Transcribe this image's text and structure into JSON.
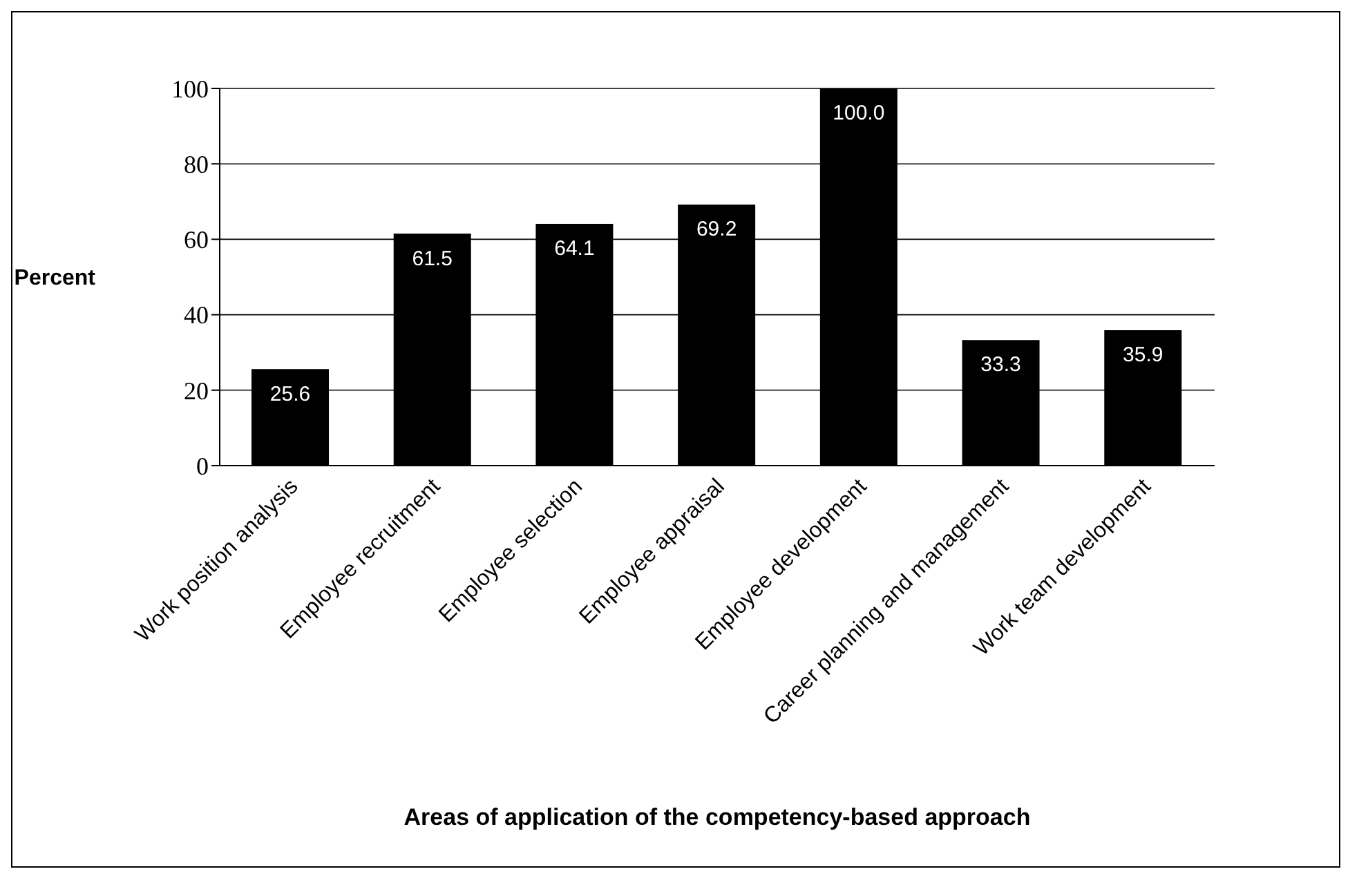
{
  "chart_data": {
    "type": "bar",
    "xlabel": "Areas of application of the competency-based approach",
    "ylabel": "Percent",
    "categories": [
      "Work position analysis",
      "Employee recruitment",
      "Employee selection",
      "Employee appraisal",
      "Employee development",
      "Career planning and management",
      "Work team development"
    ],
    "values": [
      25.6,
      61.5,
      64.1,
      69.2,
      100.0,
      33.3,
      35.9
    ],
    "value_labels": [
      "25.6",
      "61.5",
      "64.1",
      "69.2",
      "100.0",
      "33.3",
      "35.9"
    ],
    "color": "#000000",
    "ylim": [
      0,
      100
    ],
    "yticks": [
      0,
      20,
      40,
      60,
      80,
      100
    ],
    "grid": "y"
  }
}
